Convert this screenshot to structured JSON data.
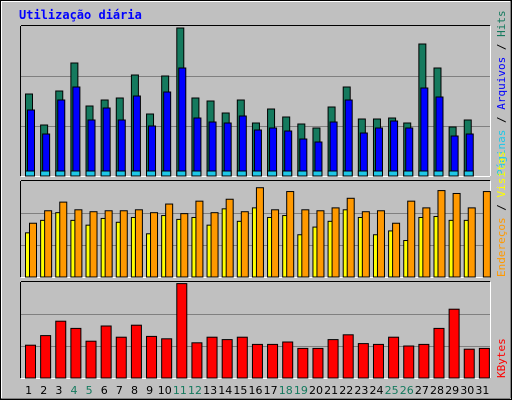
{
  "chart_data": [
    {
      "type": "bar",
      "title": "Utilização diária",
      "panel": "top",
      "categories": [
        "1",
        "2",
        "3",
        "4",
        "5",
        "6",
        "7",
        "8",
        "9",
        "10",
        "11",
        "12",
        "13",
        "14",
        "15",
        "16",
        "17",
        "18",
        "19",
        "20",
        "21",
        "22",
        "23",
        "24",
        "25",
        "26",
        "27",
        "28",
        "29",
        "30",
        "31"
      ],
      "weekend_days": [
        "4",
        "5",
        "11",
        "12",
        "18",
        "19",
        "25",
        "26"
      ],
      "series": [
        {
          "name": "Hits",
          "color": "#157a5e",
          "values": [
            82,
            51,
            85,
            113,
            70,
            76,
            78,
            101,
            62,
            100,
            148,
            78,
            75,
            63,
            76,
            53,
            67,
            59,
            52,
            48,
            69,
            89,
            57,
            57,
            58,
            53,
            132,
            108,
            49,
            56,
            0
          ]
        },
        {
          "name": "Arquivos",
          "color": "#0000ff",
          "values": [
            66,
            42,
            76,
            89,
            56,
            68,
            56,
            80,
            50,
            84,
            108,
            58,
            54,
            53,
            60,
            46,
            48,
            45,
            37,
            34,
            54,
            76,
            43,
            48,
            55,
            48,
            88,
            79,
            40,
            42,
            0
          ]
        },
        {
          "name": "Páginas",
          "color": "#1ec8e8",
          "values": [
            5,
            5,
            5,
            5,
            5,
            5,
            5,
            5,
            5,
            5,
            5,
            5,
            5,
            5,
            5,
            5,
            5,
            5,
            5,
            5,
            5,
            5,
            5,
            5,
            5,
            5,
            5,
            5,
            5,
            5,
            0
          ]
        }
      ],
      "ylim": [
        0,
        150
      ]
    },
    {
      "type": "bar",
      "panel": "middle",
      "series": [
        {
          "name": "Visitas",
          "color": "#ffff00",
          "values": [
            46,
            59,
            67,
            59,
            54,
            61,
            57,
            62,
            45,
            64,
            60,
            62,
            54,
            71,
            58,
            72,
            62,
            64,
            44,
            52,
            58,
            70,
            62,
            44,
            48,
            38,
            62,
            63,
            59,
            59,
            0
          ]
        },
        {
          "name": "Endereços",
          "color": "#ff9900",
          "values": [
            56,
            69,
            78,
            70,
            68,
            69,
            69,
            70,
            67,
            76,
            66,
            79,
            67,
            81,
            68,
            93,
            70,
            89,
            70,
            69,
            72,
            82,
            68,
            69,
            56,
            79,
            72,
            90,
            87,
            72,
            89
          ]
        }
      ],
      "ylim": [
        0,
        100
      ]
    },
    {
      "type": "bar",
      "panel": "bottom",
      "series": [
        {
          "name": "KBytes",
          "color": "#ff0000",
          "values": [
            41,
            53,
            71,
            62,
            46,
            65,
            51,
            66,
            52,
            49,
            118,
            44,
            51,
            48,
            51,
            42,
            42,
            45,
            37,
            37,
            48,
            54,
            43,
            42,
            51,
            40,
            42,
            62,
            86,
            36,
            37
          ]
        }
      ],
      "ylim": [
        0,
        120
      ]
    }
  ],
  "labels": {
    "hits": "Hits",
    "arquivos": "Arquivos",
    "paginas": "Páginas",
    "visitas": "Visitas",
    "enderecos": "Endereços",
    "kbytes": "KBytes",
    "separator": " / "
  },
  "colors": {
    "background": "#c0c0c0",
    "frame_light": "#ffffff",
    "frame_dark": "#808080",
    "grid": "#808080",
    "title": "#0000ff",
    "day_label": "#000000",
    "weekend_label": "#157a5e"
  }
}
